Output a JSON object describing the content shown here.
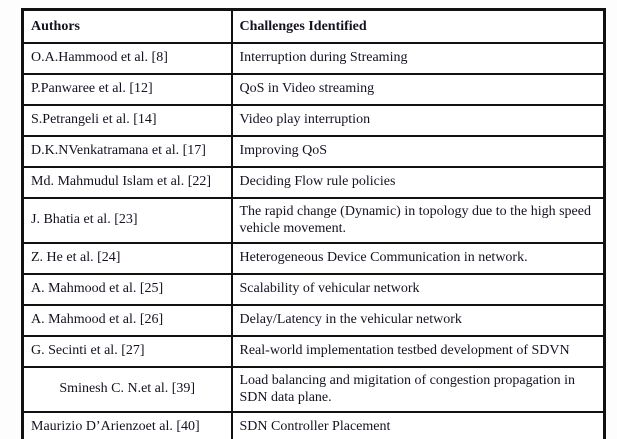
{
  "table": {
    "columns": {
      "authors": "Authors",
      "challenges": "Challenges Identified"
    },
    "rows": [
      {
        "author": "O.A.Hammood et al. [8]",
        "challenge": "Interruption during Streaming"
      },
      {
        "author": "P.Panwaree et al. [12]",
        "challenge": "QoS in Video streaming"
      },
      {
        "author": "S.Petrangeli et al. [14]",
        "challenge": "Video play interruption"
      },
      {
        "author": "D.K.NVenkatramana et al. [17]",
        "challenge": "Improving QoS"
      },
      {
        "author": "Md. Mahmudul Islam et al. [22]",
        "challenge": "Deciding Flow rule policies"
      },
      {
        "author": "J. Bhatia et al. [23]",
        "challenge": "The rapid change (Dynamic) in topology due to the high speed vehicle movement."
      },
      {
        "author": "Z. He et al. [24]",
        "challenge": "Heterogeneous Device Communication in network."
      },
      {
        "author": "A. Mahmood et al. [25]",
        "challenge": "Scalability of vehicular network"
      },
      {
        "author": "A. Mahmood et al. [26]",
        "challenge": "Delay/Latency in the vehicular network"
      },
      {
        "author": "G. Secinti et al. [27]",
        "challenge": "Real-world implementation testbed development of SDVN"
      },
      {
        "author": "Sminesh C. N.et al. [39]",
        "challenge": "Load balancing and migitation of congestion propagation in SDN data plane."
      },
      {
        "author": "Maurizio D’Arienzoet al. [40]",
        "challenge": "SDN Controller Placement"
      }
    ]
  }
}
